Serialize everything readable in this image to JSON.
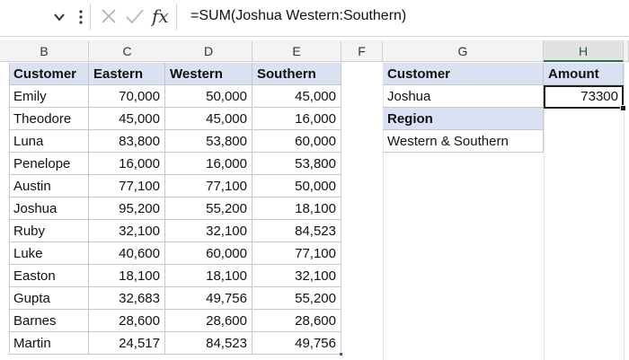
{
  "formula_bar": {
    "fx_label": "fx",
    "formula": "=SUM(Joshua Western:Southern)"
  },
  "columns": [
    "B",
    "C",
    "D",
    "E",
    "F",
    "G",
    "H"
  ],
  "selected_column": "H",
  "table": {
    "headers": [
      "Customer",
      "Eastern",
      "Western",
      "Southern"
    ],
    "rows": [
      [
        "Emily",
        "70,000",
        "50,000",
        "45,000"
      ],
      [
        "Theodore",
        "45,000",
        "45,000",
        "16,000"
      ],
      [
        "Luna",
        "83,800",
        "53,800",
        "60,000"
      ],
      [
        "Penelope",
        "16,000",
        "16,000",
        "53,800"
      ],
      [
        "Austin",
        "77,100",
        "77,100",
        "50,000"
      ],
      [
        "Joshua",
        "95,200",
        "55,200",
        "18,100"
      ],
      [
        "Ruby",
        "32,100",
        "32,100",
        "84,523"
      ],
      [
        "Luke",
        "40,600",
        "60,000",
        "77,100"
      ],
      [
        "Easton",
        "18,100",
        "18,100",
        "32,100"
      ],
      [
        "Gupta",
        "32,683",
        "49,756",
        "55,200"
      ],
      [
        "Barnes",
        "28,600",
        "28,600",
        "28,600"
      ],
      [
        "Martin",
        "24,517",
        "84,523",
        "49,756"
      ]
    ]
  },
  "lookup": {
    "customer_label": "Customer",
    "amount_label": "Amount",
    "customer_value": "Joshua",
    "amount_value": "73300",
    "region_label": "Region",
    "region_value": "Western & Southern"
  },
  "colors": {
    "header_fill": "#d9e1f2",
    "selection_border": "#1f1f1f",
    "excel_green": "#217346"
  }
}
